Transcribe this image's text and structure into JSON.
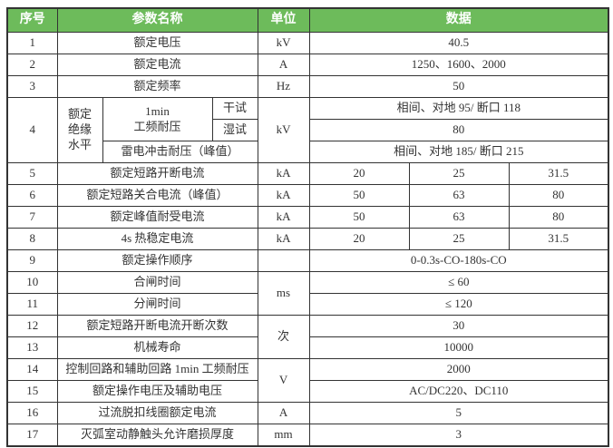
{
  "colors": {
    "header_bg": "#6DBB5B",
    "header_text": "#FFFFFF",
    "border": "#333333",
    "text": "#333333"
  },
  "header": {
    "no": "序号",
    "param": "参数名称",
    "unit": "单位",
    "data": "数据"
  },
  "rows": {
    "r1": {
      "no": "1",
      "name": "额定电压",
      "unit": "kV",
      "value": "40.5"
    },
    "r2": {
      "no": "2",
      "name": "额定电流",
      "unit": "A",
      "value": "1250、1600、2000"
    },
    "r3": {
      "no": "3",
      "name": "额定频率",
      "unit": "Hz",
      "value": "50"
    },
    "r4": {
      "no": "4",
      "group": "额定\n绝缘\n水平",
      "freq_withstand": "1min\n工频耐压",
      "dry": "干试",
      "wet": "湿试",
      "impulse": "雷电冲击耐压（峰值）",
      "unit": "kV",
      "dry_value": "相间、对地 95/ 断口 118",
      "wet_value": "80",
      "impulse_value": "相间、对地 185/ 断口 215"
    },
    "r5": {
      "no": "5",
      "name": "额定短路开断电流",
      "unit": "kA",
      "values": [
        "20",
        "25",
        "31.5"
      ]
    },
    "r6": {
      "no": "6",
      "name": "额定短路关合电流（峰值）",
      "unit": "kA",
      "values": [
        "50",
        "63",
        "80"
      ]
    },
    "r7": {
      "no": "7",
      "name": "额定峰值耐受电流",
      "unit": "kA",
      "values": [
        "50",
        "63",
        "80"
      ]
    },
    "r8": {
      "no": "8",
      "name": "4s 热稳定电流",
      "unit": "kA",
      "values": [
        "20",
        "25",
        "31.5"
      ]
    },
    "r9": {
      "no": "9",
      "name": "额定操作顺序",
      "unit": "",
      "value": "0-0.3s-CO-180s-CO"
    },
    "r10": {
      "no": "10",
      "name": "合闸时间",
      "unit": "ms",
      "value": "≤ 60"
    },
    "r11": {
      "no": "11",
      "name": "分闸时间",
      "value": "≤ 120"
    },
    "r12": {
      "no": "12",
      "name": "额定短路开断电流开断次数",
      "unit": "次",
      "value": "30"
    },
    "r13": {
      "no": "13",
      "name": "机械寿命",
      "value": "10000"
    },
    "r14": {
      "no": "14",
      "name": "控制回路和辅助回路 1min 工频耐压",
      "unit": "V",
      "value": "2000"
    },
    "r15": {
      "no": "15",
      "name": "额定操作电压及辅助电压",
      "value": "AC/DC220、DC110"
    },
    "r16": {
      "no": "16",
      "name": "过流脱扣线圈额定电流",
      "unit": "A",
      "value": "5"
    },
    "r17": {
      "no": "17",
      "name": "灭弧室动静触头允许磨损厚度",
      "unit": "mm",
      "value": "3"
    }
  }
}
